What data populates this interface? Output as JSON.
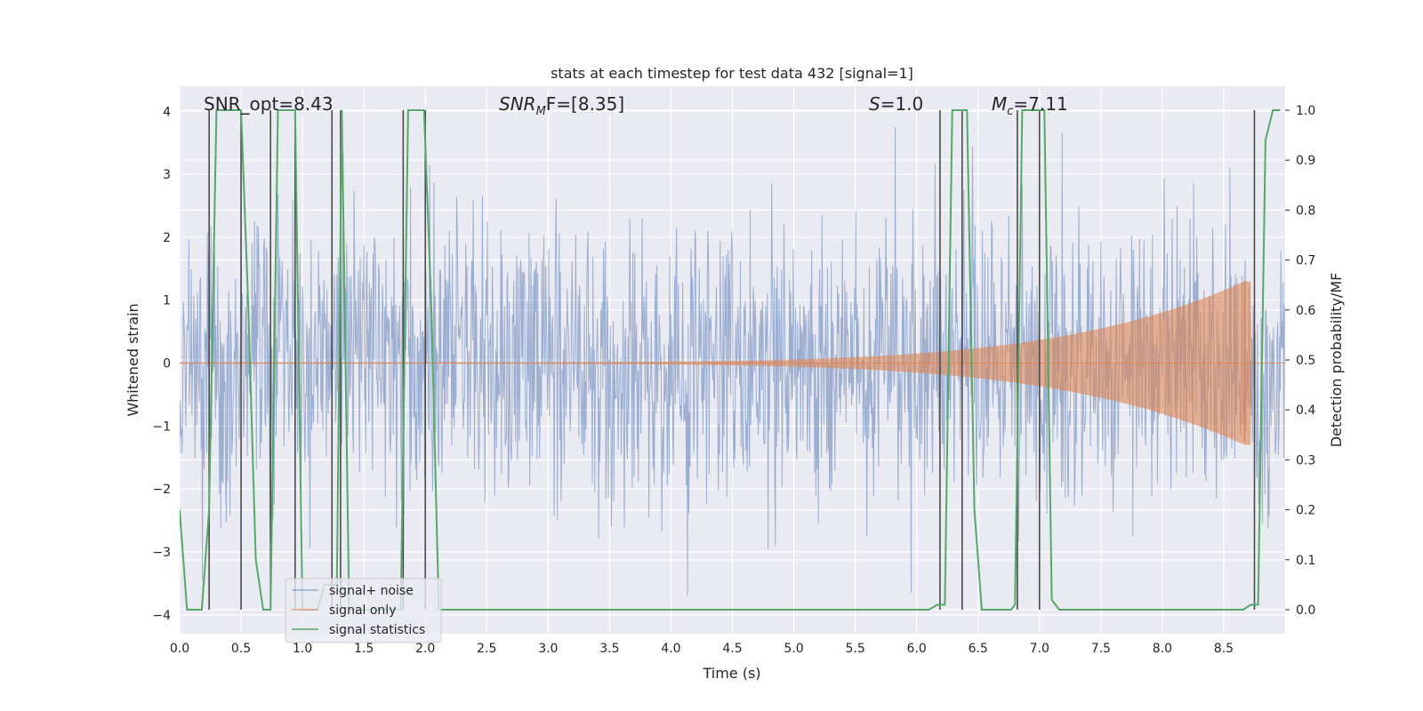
{
  "chart_data": {
    "type": "line",
    "title": "stats at each timestep for test data 432 [signal=1]",
    "xlabel": "Time (s)",
    "ylabel": "Whitened strain",
    "y2label": "Detection probability/MF",
    "xlim": [
      0.0,
      9.0
    ],
    "ylim": [
      -4.3,
      4.4
    ],
    "y2lim": [
      -0.048,
      1.048
    ],
    "xticks": [
      "0.0",
      "0.5",
      "1.0",
      "1.5",
      "2.0",
      "2.5",
      "3.0",
      "3.5",
      "4.0",
      "4.5",
      "5.0",
      "5.5",
      "6.0",
      "6.5",
      "7.0",
      "7.5",
      "8.0",
      "8.5"
    ],
    "yticks": [
      "−4",
      "−3",
      "−2",
      "−1",
      "0",
      "1",
      "2",
      "3",
      "4"
    ],
    "y2ticks": [
      "0.0",
      "0.1",
      "0.2",
      "0.3",
      "0.4",
      "0.5",
      "0.6",
      "0.7",
      "0.8",
      "0.9",
      "1.0"
    ],
    "annotations": {
      "snr_opt": "SNR_opt=8.43",
      "snr_mf_label": "SNR",
      "snr_mf_sub": "M",
      "snr_mf_rest": "F=[8.35]",
      "s_label": "S",
      "s_rest": "=1.0",
      "mc_label": "M",
      "mc_sub": "c",
      "mc_rest": "=7.11"
    },
    "legend": {
      "location": "lower left",
      "entries": [
        "signal+ noise",
        "signal only",
        "signal statistics"
      ]
    },
    "colors": {
      "noise": "#4c72b0",
      "signal": "#dd8452",
      "stats": "#55a868",
      "vlines": "#4a4a4a",
      "background": "#eaeaf2"
    },
    "noise_envelope": {
      "sample_rate_hz": 200,
      "typical_amplitude": 1.1,
      "peak_amplitude": 4.1
    },
    "signal_only": {
      "amplitude_at_start": 0.01,
      "amplitude_max": 1.3,
      "peak_time": 8.67,
      "end_time": 8.72
    },
    "series": [
      {
        "name": "signal statistics",
        "axis": "y2",
        "x": [
          0.0,
          0.06,
          0.12,
          0.18,
          0.24,
          0.3,
          0.36,
          0.42,
          0.5,
          0.56,
          0.62,
          0.68,
          0.74,
          0.8,
          0.86,
          0.94,
          1.0,
          1.06,
          1.12,
          1.18,
          1.24,
          1.28,
          1.32,
          1.38,
          1.44,
          1.5,
          1.56,
          1.62,
          1.68,
          1.74,
          1.8,
          1.86,
          1.93,
          1.99,
          2.05,
          2.11,
          2.2,
          3.0,
          4.0,
          5.0,
          5.6,
          6.1,
          6.17,
          6.23,
          6.29,
          6.35,
          6.41,
          6.47,
          6.53,
          6.59,
          6.65,
          6.71,
          6.77,
          6.8,
          6.86,
          6.92,
          6.98,
          7.04,
          7.1,
          7.16,
          7.3,
          7.5,
          8.0,
          8.5,
          8.6,
          8.66,
          8.72,
          8.78,
          8.84,
          8.9,
          8.96
        ],
        "values": [
          0.2,
          0.0,
          0.0,
          0.0,
          0.2,
          1.0,
          1.0,
          1.0,
          1.0,
          0.6,
          0.1,
          0.0,
          0.0,
          1.0,
          1.0,
          1.0,
          0.0,
          0.0,
          0.0,
          0.05,
          0.05,
          0.05,
          1.0,
          0.0,
          0.0,
          0.0,
          0.0,
          0.0,
          0.0,
          0.0,
          0.0,
          1.0,
          1.0,
          1.0,
          0.6,
          0.0,
          0.0,
          0.0,
          0.0,
          0.0,
          0.0,
          0.0,
          0.01,
          0.01,
          1.0,
          1.0,
          1.0,
          0.2,
          0.0,
          0.0,
          0.0,
          0.0,
          0.0,
          0.01,
          1.0,
          1.0,
          1.0,
          1.0,
          0.02,
          0.0,
          0.0,
          0.0,
          0.0,
          0.0,
          0.0,
          0.0,
          0.01,
          0.01,
          0.94,
          1.0,
          1.0
        ]
      }
    ],
    "vertical_lines": [
      0.24,
      0.5,
      0.74,
      0.94,
      1.24,
      1.31,
      1.82,
      2.0,
      6.19,
      6.37,
      6.82,
      7.0,
      8.75
    ]
  }
}
